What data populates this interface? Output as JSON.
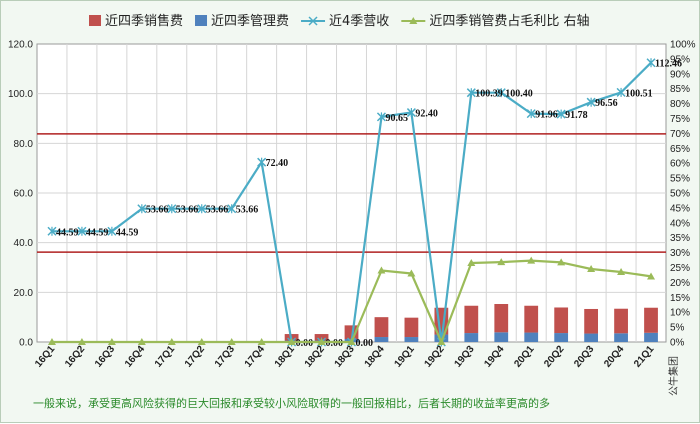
{
  "chart_data": {
    "type": "bar",
    "categories": [
      "16Q1",
      "16Q2",
      "16Q3",
      "16Q4",
      "17Q1",
      "17Q2",
      "17Q3",
      "17Q4",
      "18Q1",
      "18Q2",
      "18Q3",
      "18Q4",
      "19Q1",
      "19Q2",
      "19Q3",
      "19Q4",
      "20Q1",
      "20Q2",
      "20Q3",
      "20Q4",
      "21Q1"
    ],
    "series": [
      {
        "name": "近四季销售费",
        "kind": "bar",
        "axis": "left",
        "color": "#c0504d",
        "values": [
          0,
          0,
          0,
          0,
          0,
          0,
          0,
          0,
          2.6,
          2.6,
          5.5,
          8.0,
          7.8,
          10.8,
          11.0,
          11.4,
          10.8,
          10.3,
          9.9,
          9.9,
          10.1
        ]
      },
      {
        "name": "近四季管理费",
        "kind": "bar",
        "axis": "left",
        "color": "#4f81bd",
        "values": [
          0,
          0,
          0,
          0,
          0,
          0,
          0,
          0,
          0.6,
          0.6,
          1.2,
          2.0,
          2.0,
          3.0,
          3.6,
          3.9,
          3.8,
          3.6,
          3.4,
          3.5,
          3.7
        ]
      },
      {
        "name": "近4季营收",
        "kind": "line",
        "axis": "left",
        "color": "#4bacc6",
        "values": [
          44.59,
          44.59,
          44.59,
          53.66,
          53.66,
          53.66,
          53.66,
          72.4,
          0.0,
          0.0,
          0.0,
          90.65,
          92.4,
          0.0,
          100.39,
          100.4,
          91.96,
          91.78,
          96.56,
          100.51,
          112.46
        ],
        "labels": [
          "44.59",
          "44.59",
          "44.59",
          "53.66",
          "53.66",
          "53.66",
          "53.66",
          "72.40",
          "0.00",
          "0.00",
          "0.00",
          "90.65",
          "92.40",
          "",
          "100.39",
          "100.40",
          "91.96",
          "91.78",
          "96.56",
          "100.51",
          "112.46"
        ]
      },
      {
        "name": "近四季销管费占毛利比 右轴",
        "kind": "line",
        "axis": "right",
        "color": "#9bbb59",
        "values": [
          0,
          0,
          0,
          0,
          0,
          0,
          0,
          0,
          0,
          0,
          0,
          24,
          23,
          0,
          26.5,
          26.8,
          27.3,
          26.7,
          24.5,
          23.5,
          22
        ]
      }
    ],
    "ylim": [
      0,
      120
    ],
    "yticks": [
      "0.0",
      "20.0",
      "40.0",
      "60.0",
      "80.0",
      "100.0",
      "120.0"
    ],
    "y2lim": [
      0,
      100
    ],
    "y2ticks": [
      "0%",
      "5%",
      "10%",
      "15%",
      "20%",
      "25%",
      "30%",
      "35%",
      "40%",
      "45%",
      "50%",
      "55%",
      "60%",
      "65%",
      "70%",
      "75%",
      "80%",
      "85%",
      "90%",
      "95%",
      "100%"
    ],
    "ref_lines": [
      {
        "axis": "left",
        "value": 36.2,
        "color": "#b02020"
      },
      {
        "axis": "left",
        "value": 83.8,
        "color": "#b02020"
      }
    ],
    "grid": true,
    "legend": "top"
  },
  "watermark": "公牛集团",
  "footnote": "一般来说，承受更高风险获得的巨大回报和承受较小风险取得的一般回报相比，后者长期的收益率更高的多"
}
